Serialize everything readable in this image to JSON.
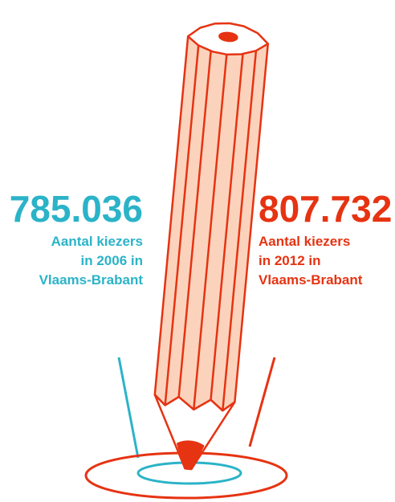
{
  "left": {
    "number": "785.036",
    "label_lines": [
      "Aantal kiezers",
      "in 2006 in",
      "Vlaams-Brabant"
    ]
  },
  "right": {
    "number": "807.732",
    "label_lines": [
      "Aantal kiezers",
      "in 2012 in",
      "Vlaams-Brabant"
    ]
  }
}
